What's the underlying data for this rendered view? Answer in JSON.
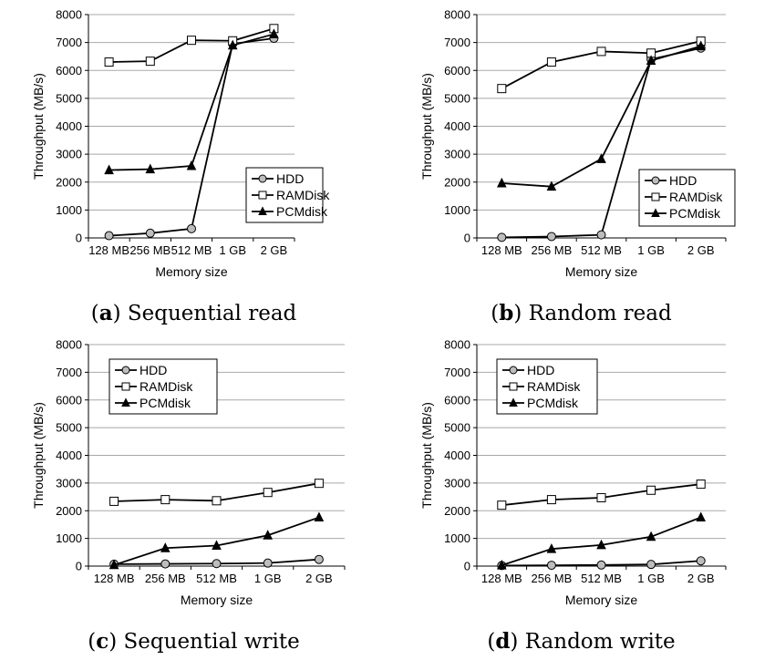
{
  "chart_data": [
    {
      "type": "line",
      "caption_letter": "a",
      "caption_text": "Sequential read",
      "categories": [
        "128 MB",
        "256 MB",
        "512 MB",
        "1 GB",
        "2 GB"
      ],
      "xlabel": "Memory size",
      "ylabel": "Throughput (MB/s)",
      "ylim": [
        0,
        8000
      ],
      "yticks": [
        "0",
        "1000",
        "2000",
        "3000",
        "4000",
        "5000",
        "6000",
        "7000",
        "8000"
      ],
      "grid": true,
      "legend": "bottom-right",
      "series": [
        {
          "name": "HDD",
          "marker": "circle",
          "values": [
            80,
            170,
            330,
            6950,
            7150
          ]
        },
        {
          "name": "RAMDisk",
          "marker": "square",
          "values": [
            6300,
            6330,
            7080,
            7060,
            7500
          ]
        },
        {
          "name": "PCMdisk",
          "marker": "triangle",
          "values": [
            2430,
            2460,
            2580,
            6900,
            7300
          ]
        }
      ]
    },
    {
      "type": "line",
      "caption_letter": "b",
      "caption_text": "Random read",
      "categories": [
        "128 MB",
        "256 MB",
        "512 MB",
        "1 GB",
        "2 GB"
      ],
      "xlabel": "Memory size",
      "ylabel": "Throughput (MB/s)",
      "ylim": [
        0,
        8000
      ],
      "yticks": [
        "0",
        "1000",
        "2000",
        "3000",
        "4000",
        "5000",
        "6000",
        "7000",
        "8000"
      ],
      "grid": true,
      "legend": "bottom-right",
      "series": [
        {
          "name": "HDD",
          "marker": "circle",
          "values": [
            20,
            50,
            110,
            6400,
            6800
          ]
        },
        {
          "name": "RAMDisk",
          "marker": "square",
          "values": [
            5350,
            6300,
            6680,
            6620,
            7050
          ]
        },
        {
          "name": "PCMdisk",
          "marker": "triangle",
          "values": [
            1960,
            1840,
            2830,
            6350,
            6870
          ]
        }
      ]
    },
    {
      "type": "line",
      "caption_letter": "c",
      "caption_text": "Sequential write",
      "categories": [
        "128 MB",
        "256 MB",
        "512 MB",
        "1 GB",
        "2 GB"
      ],
      "xlabel": "Memory size",
      "ylabel": "Throughput (MB/s)",
      "ylim": [
        0,
        8000
      ],
      "yticks": [
        "0",
        "1000",
        "2000",
        "3000",
        "4000",
        "5000",
        "6000",
        "7000",
        "8000"
      ],
      "grid": true,
      "legend": "top-left",
      "series": [
        {
          "name": "HDD",
          "marker": "circle",
          "values": [
            70,
            80,
            90,
            110,
            240
          ]
        },
        {
          "name": "RAMDisk",
          "marker": "square",
          "values": [
            2340,
            2400,
            2360,
            2660,
            2990
          ]
        },
        {
          "name": "PCMdisk",
          "marker": "triangle",
          "values": [
            40,
            650,
            740,
            1110,
            1760
          ]
        }
      ]
    },
    {
      "type": "line",
      "caption_letter": "d",
      "caption_text": "Random write",
      "categories": [
        "128 MB",
        "256 MB",
        "512 MB",
        "1 GB",
        "2 GB"
      ],
      "xlabel": "Memory size",
      "ylabel": "Throughput (MB/s)",
      "ylim": [
        0,
        8000
      ],
      "yticks": [
        "0",
        "1000",
        "2000",
        "3000",
        "4000",
        "5000",
        "6000",
        "7000",
        "8000"
      ],
      "grid": true,
      "legend": "top-left",
      "series": [
        {
          "name": "HDD",
          "marker": "circle",
          "values": [
            20,
            30,
            40,
            60,
            190
          ]
        },
        {
          "name": "RAMDisk",
          "marker": "square",
          "values": [
            2200,
            2400,
            2470,
            2740,
            2960
          ]
        },
        {
          "name": "PCMdisk",
          "marker": "triangle",
          "values": [
            30,
            620,
            760,
            1060,
            1760
          ]
        }
      ]
    }
  ]
}
